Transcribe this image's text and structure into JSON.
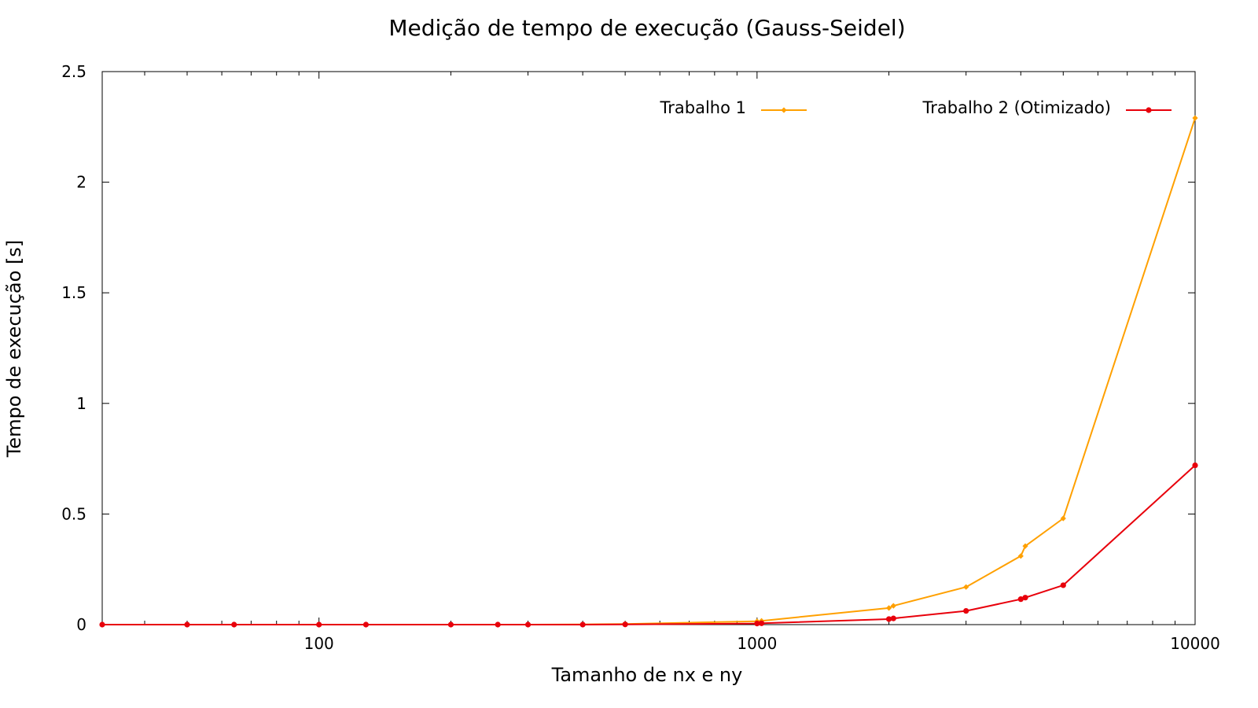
{
  "chart_data": {
    "type": "line",
    "title": "Medição de tempo de execução (Gauss-Seidel)",
    "xlabel": "Tamanho de nx e ny",
    "ylabel": "Tempo de execução [s]",
    "x_scale": "log",
    "xlim": [
      32,
      10000
    ],
    "ylim": [
      0,
      2.5
    ],
    "x_ticks": [
      {
        "value": 100,
        "label": "100"
      },
      {
        "value": 1000,
        "label": "1000"
      },
      {
        "value": 10000,
        "label": "10000"
      }
    ],
    "y_ticks": [
      {
        "value": 0,
        "label": "0"
      },
      {
        "value": 0.5,
        "label": "0.5"
      },
      {
        "value": 1,
        "label": "1"
      },
      {
        "value": 1.5,
        "label": "1.5"
      },
      {
        "value": 2,
        "label": "2"
      },
      {
        "value": 2.5,
        "label": "2.5"
      }
    ],
    "grid": false,
    "legend_position": "top-right",
    "series": [
      {
        "name": "Trabalho 1",
        "color": "#FFA000",
        "marker": "diamond",
        "x": [
          32,
          50,
          64,
          100,
          128,
          200,
          256,
          300,
          400,
          500,
          1000,
          1024,
          2000,
          2048,
          3000,
          4000,
          4096,
          5000,
          10000
        ],
        "y": [
          0.0,
          0.0,
          0.0,
          0.0,
          0.0,
          0.0,
          0.0,
          0.0,
          0.001,
          0.003,
          0.015,
          0.017,
          0.075,
          0.085,
          0.17,
          0.31,
          0.355,
          0.48,
          2.29
        ]
      },
      {
        "name": "Trabalho 2 (Otimizado)",
        "color": "#E8000B",
        "marker": "cross",
        "x": [
          32,
          50,
          64,
          100,
          128,
          200,
          256,
          300,
          400,
          500,
          1000,
          1024,
          2000,
          2048,
          3000,
          4000,
          4096,
          5000,
          10000
        ],
        "y": [
          0.0,
          0.0,
          0.0,
          0.0,
          0.0,
          0.0,
          0.0,
          0.0,
          0.0,
          0.001,
          0.005,
          0.006,
          0.025,
          0.028,
          0.062,
          0.115,
          0.122,
          0.178,
          0.72
        ]
      }
    ]
  }
}
